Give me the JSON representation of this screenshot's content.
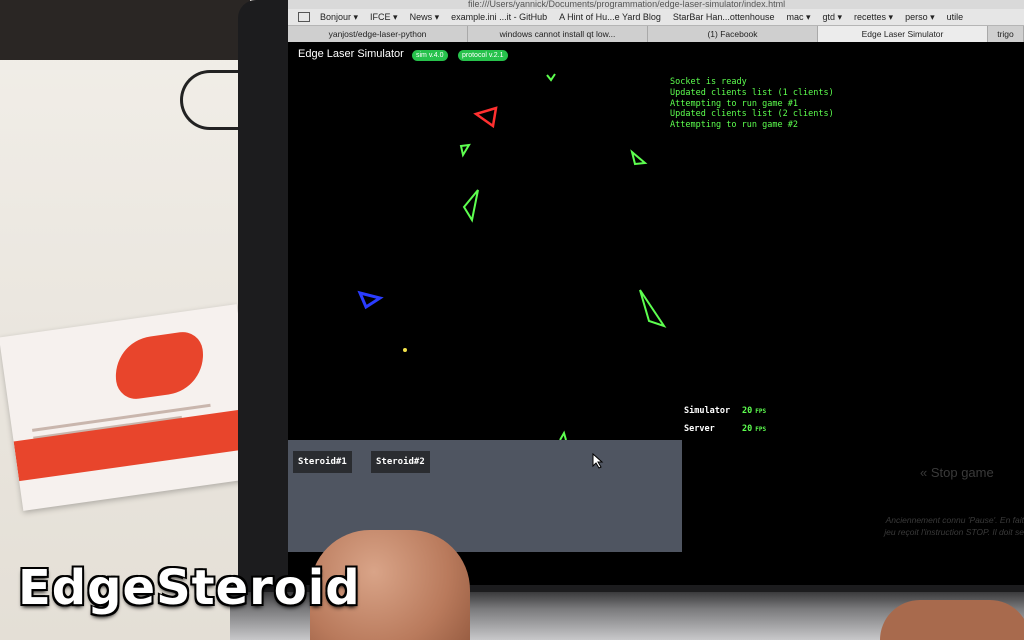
{
  "browser": {
    "url": "file:///Users/yannick/Documents/programmation/edge-laser-simulator/index.html",
    "bookmarks": [
      "Bonjour ▾",
      "IFCE ▾",
      "News ▾",
      "example.ini ...it - GitHub",
      "A Hint of Hu...e Yard Blog",
      "StarBar Han...ottenhouse",
      "mac ▾",
      "gtd ▾",
      "recettes ▾",
      "perso ▾",
      "utile"
    ],
    "tabs": [
      "yanjost/edge-laser-python",
      "windows cannot install qt low...",
      "(1) Facebook",
      "Edge Laser Simulator",
      "trigo"
    ]
  },
  "app": {
    "title": "Edge Laser Simulator",
    "badge_sim": "sim v.4.0",
    "badge_protocol": "protocol v.2.1",
    "log": [
      "Socket is ready",
      "Updated clients list (1 clients)",
      "Attempting to run game #1",
      "Updated clients list (2 clients)",
      "Attempting to run game #2"
    ],
    "stats": {
      "simulator_label": "Simulator",
      "simulator_value": "20",
      "simulator_unit": "FPS",
      "server_label": "Server",
      "server_value": "20",
      "server_unit": "FPS"
    },
    "game_tabs": [
      "Steroid#1",
      "Steroid#2"
    ],
    "stop_game": "« Stop game",
    "hint_line1": "Anciennement connu 'Pause'. En fait",
    "hint_line2": "jeu reçoit l'instruction STOP. Il doit se"
  },
  "caption": "EdgeSteroid",
  "colors": {
    "laser_green": "#5dff4f",
    "laser_red": "#ff3030",
    "laser_blue": "#2a3cff",
    "badge": "#27c24c"
  },
  "icons": [
    "cursor-icon",
    "bookmarks-grid-icon"
  ]
}
